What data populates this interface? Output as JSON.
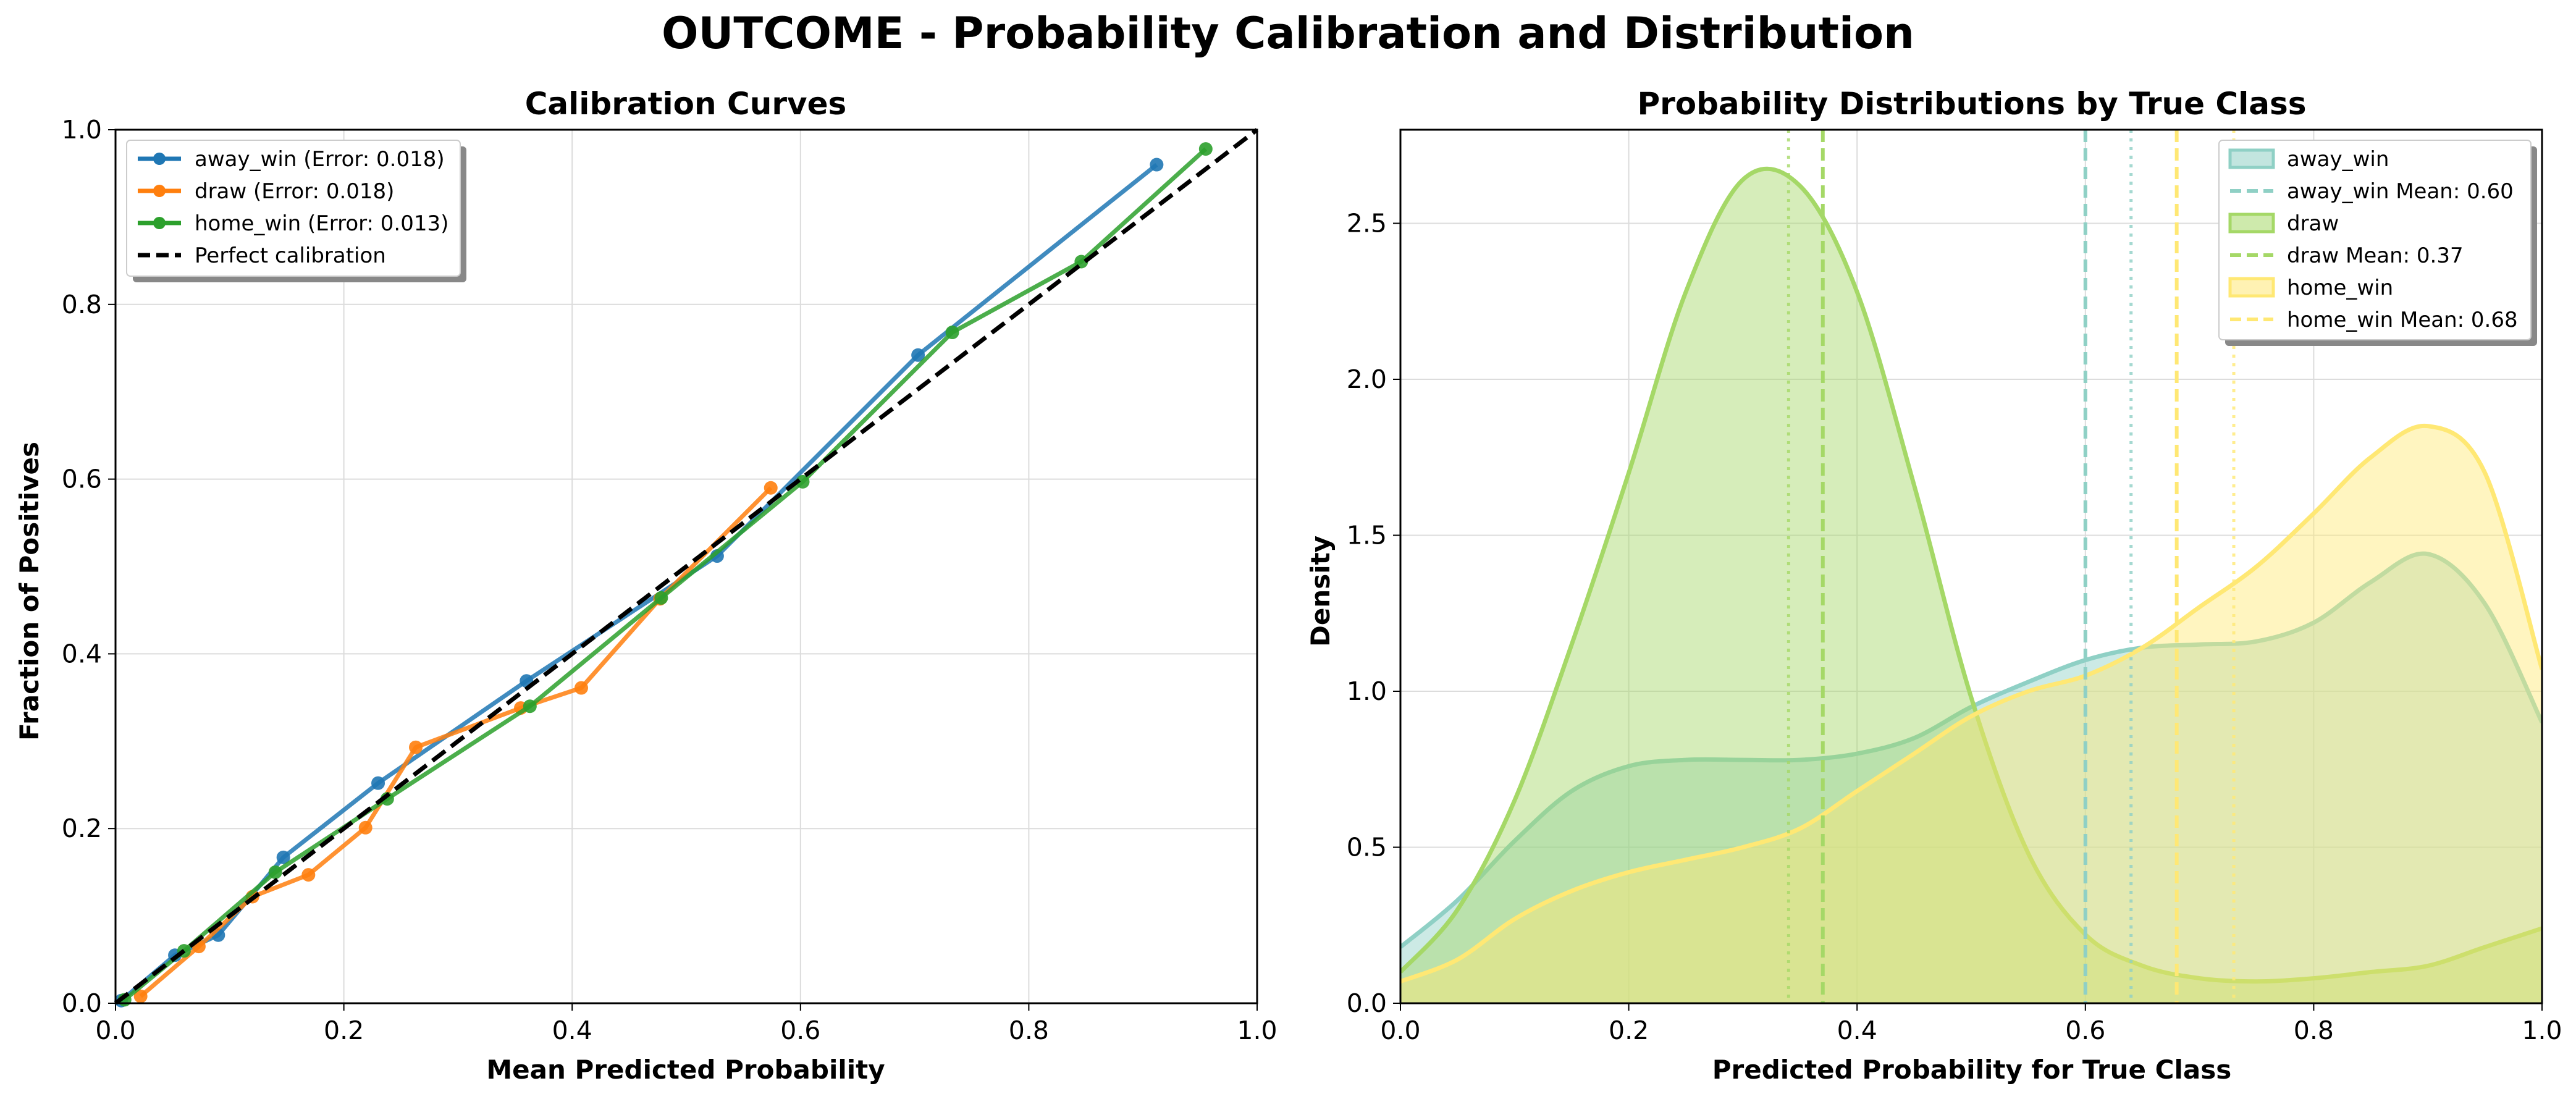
{
  "figure": {
    "suptitle": "OUTCOME - Probability Calibration and Distribution"
  },
  "chart_data": [
    {
      "type": "line",
      "title": "Calibration Curves",
      "xlabel": "Mean Predicted Probability",
      "ylabel": "Fraction of Positives",
      "xlim": [
        0.0,
        1.0
      ],
      "ylim": [
        0.0,
        1.0
      ],
      "xticks": [
        "0.0",
        "0.2",
        "0.4",
        "0.6",
        "0.8",
        "1.0"
      ],
      "yticks": [
        "0.0",
        "0.2",
        "0.4",
        "0.6",
        "0.8",
        "1.0"
      ],
      "grid": true,
      "legend_position": "upper-left",
      "series": [
        {
          "name": "away_win (Error: 0.018)",
          "color": "#1f77b4",
          "marker": "circle",
          "x": [
            0.005,
            0.052,
            0.09,
            0.147,
            0.23,
            0.36,
            0.527,
            0.703,
            0.912
          ],
          "y": [
            0.003,
            0.055,
            0.078,
            0.167,
            0.252,
            0.369,
            0.512,
            0.742,
            0.96
          ]
        },
        {
          "name": "draw (Error: 0.018)",
          "color": "#ff7f0e",
          "marker": "circle",
          "x": [
            0.022,
            0.073,
            0.12,
            0.169,
            0.219,
            0.263,
            0.355,
            0.408,
            0.477,
            0.574
          ],
          "y": [
            0.008,
            0.065,
            0.122,
            0.147,
            0.201,
            0.293,
            0.338,
            0.361,
            0.463,
            0.59
          ]
        },
        {
          "name": "home_win (Error: 0.013)",
          "color": "#2ca02c",
          "marker": "circle",
          "x": [
            0.008,
            0.06,
            0.14,
            0.238,
            0.363,
            0.478,
            0.602,
            0.733,
            0.846,
            0.955
          ],
          "y": [
            0.004,
            0.06,
            0.15,
            0.234,
            0.34,
            0.464,
            0.597,
            0.768,
            0.849,
            0.978
          ]
        },
        {
          "name": "Perfect calibration",
          "color": "#000000",
          "style": "dashed",
          "x": [
            0,
            1
          ],
          "y": [
            0,
            1
          ]
        }
      ]
    },
    {
      "type": "area",
      "title": "Probability Distributions by True Class",
      "xlabel": "Predicted Probability for True Class",
      "ylabel": "Density",
      "xlim": [
        0.0,
        1.0
      ],
      "ylim": [
        0.0,
        2.8
      ],
      "xticks": [
        "0.0",
        "0.2",
        "0.4",
        "0.6",
        "0.8",
        "1.0"
      ],
      "yticks": [
        "0.0",
        "0.5",
        "1.0",
        "1.5",
        "2.0",
        "2.5"
      ],
      "grid": true,
      "legend_position": "upper-right",
      "legend_entries": [
        "away_win",
        "away_win Mean: 0.60",
        "draw",
        "draw Mean: 0.37",
        "home_win",
        "home_win Mean: 0.68"
      ],
      "x": [
        0.0,
        0.05,
        0.1,
        0.15,
        0.2,
        0.25,
        0.3,
        0.35,
        0.4,
        0.45,
        0.5,
        0.55,
        0.6,
        0.65,
        0.7,
        0.75,
        0.8,
        0.85,
        0.9,
        0.95,
        1.0
      ],
      "series": [
        {
          "name": "away_win",
          "color": "#8fd0c5",
          "mean": 0.6,
          "median": 0.64,
          "values": [
            0.18,
            0.33,
            0.52,
            0.68,
            0.76,
            0.78,
            0.78,
            0.78,
            0.8,
            0.85,
            0.95,
            1.03,
            1.1,
            1.14,
            1.15,
            1.16,
            1.22,
            1.35,
            1.44,
            1.28,
            0.9
          ]
        },
        {
          "name": "draw",
          "color": "#a5d867",
          "mean": 0.37,
          "median": 0.34,
          "values": [
            0.1,
            0.3,
            0.65,
            1.15,
            1.7,
            2.28,
            2.64,
            2.62,
            2.28,
            1.66,
            0.98,
            0.48,
            0.22,
            0.12,
            0.08,
            0.07,
            0.08,
            0.1,
            0.12,
            0.18,
            0.24
          ]
        },
        {
          "name": "home_win",
          "color": "#ffe874",
          "mean": 0.68,
          "median": 0.73,
          "values": [
            0.07,
            0.14,
            0.27,
            0.36,
            0.42,
            0.46,
            0.5,
            0.56,
            0.68,
            0.8,
            0.92,
            1.0,
            1.05,
            1.14,
            1.27,
            1.4,
            1.57,
            1.75,
            1.85,
            1.7,
            1.07
          ]
        }
      ]
    }
  ]
}
